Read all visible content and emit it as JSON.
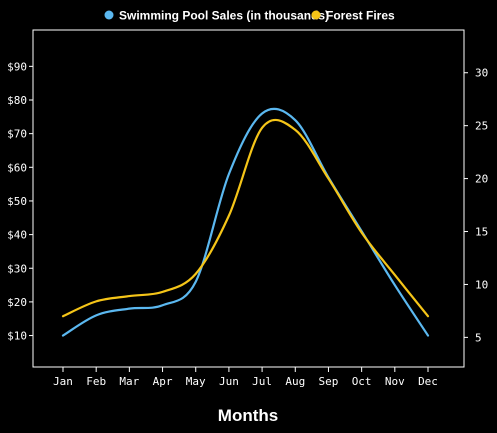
{
  "chart_data": {
    "type": "line",
    "title": "",
    "xlabel": "Months",
    "ylabel_left": "",
    "ylabel_right": "",
    "categories": [
      "Jan",
      "Feb",
      "Mar",
      "Apr",
      "May",
      "Jun",
      "Jul",
      "Aug",
      "Sep",
      "Oct",
      "Nov",
      "Dec"
    ],
    "series": [
      {
        "name": "Swimming Pool Sales (in thousands)",
        "axis": "left",
        "color": "#5bb8f0",
        "values": [
          10,
          16,
          18,
          19,
          26,
          58,
          76,
          74,
          57,
          41,
          25,
          10
        ]
      },
      {
        "name": "Forest Fires",
        "axis": "right",
        "color": "#f5c518",
        "values": [
          7,
          8.4,
          8.9,
          9.3,
          11,
          16.5,
          24.8,
          24.6,
          20,
          14.9,
          10.9,
          7
        ]
      }
    ],
    "left_axis": {
      "range": [
        0,
        100
      ],
      "ticks": [
        10,
        20,
        30,
        40,
        50,
        60,
        70,
        80,
        90
      ],
      "tick_labels": [
        "$10",
        "$20",
        "$30",
        "$40",
        "$50",
        "$60",
        "$70",
        "$80",
        "$90"
      ]
    },
    "right_axis": {
      "range": [
        0,
        34
      ],
      "ticks": [
        5,
        10,
        15,
        20,
        25,
        30
      ],
      "tick_labels": [
        "5",
        "10",
        "15",
        "20",
        "25",
        "30"
      ]
    },
    "legend_position": "top-center",
    "grid": false
  }
}
